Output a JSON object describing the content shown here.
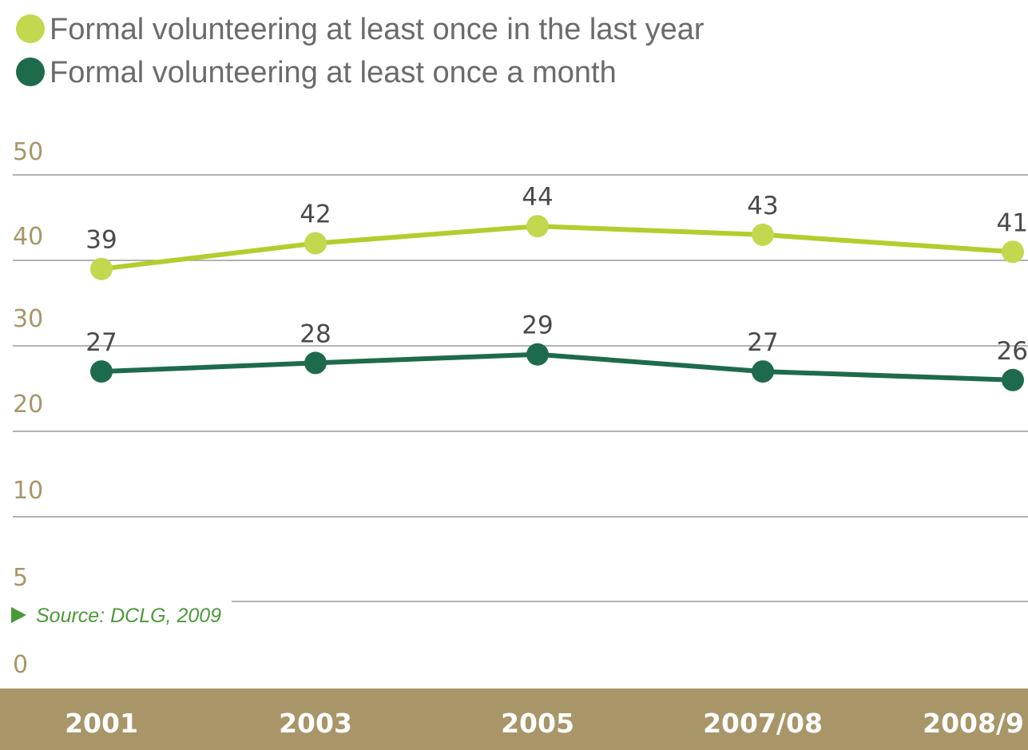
{
  "colors": {
    "series_light": "#b5cc2e",
    "series_light_marker": "#c3d84f",
    "series_dark": "#1e6b4c",
    "axis_band": "#a89669",
    "tick_text": "#a89669",
    "gridline": "#9a9a9a",
    "source_accent": "#4a9a3a"
  },
  "source": {
    "text": "Source: DCLG, 2009"
  },
  "chart_data": {
    "type": "line",
    "categories": [
      "2001",
      "2003",
      "2005",
      "2007/08",
      "2008/9"
    ],
    "y_ticks": [
      0,
      5,
      10,
      20,
      30,
      40,
      50
    ],
    "grid": true,
    "legend_position": "top-left",
    "series": [
      {
        "name": "Formal volunteering at least once in the last year",
        "values": [
          39,
          42,
          44,
          43,
          41
        ],
        "color": "#b5cc2e"
      },
      {
        "name": "Formal volunteering at least once a month",
        "values": [
          27,
          28,
          29,
          27,
          26
        ],
        "color": "#1e6b4c"
      }
    ]
  }
}
